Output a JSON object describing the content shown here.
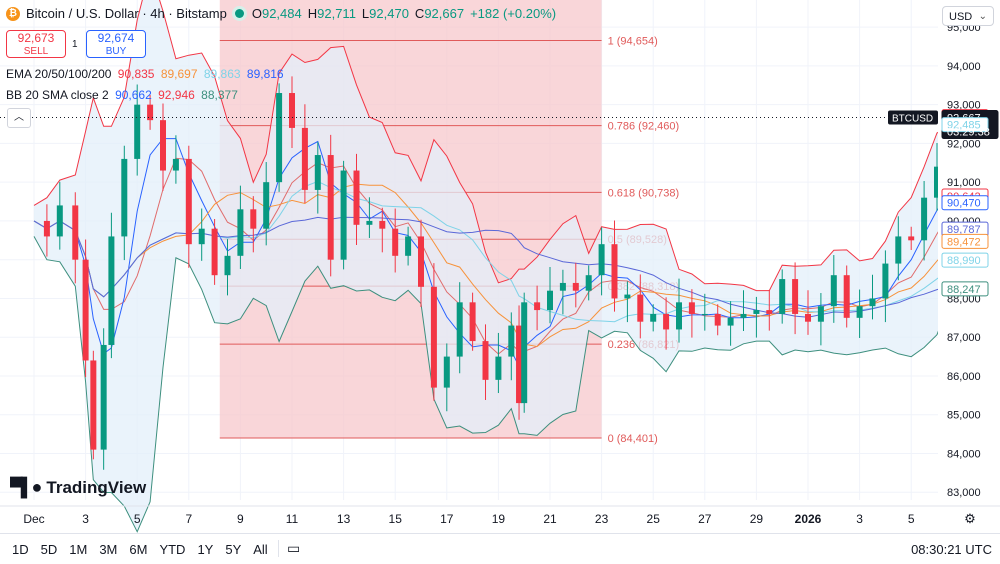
{
  "header": {
    "title": "Bitcoin / U.S. Dollar · 4h · Bitstamp",
    "o_label": "O",
    "o": "92,484",
    "h_label": "H",
    "h": "92,711",
    "l_label": "L",
    "l": "92,470",
    "c_label": "C",
    "c": "92,667",
    "change": "+182 (+0.20%)"
  },
  "trade": {
    "sell_price": "92,673",
    "sell_label": "SELL",
    "spread": "1",
    "buy_price": "92,674",
    "buy_label": "BUY"
  },
  "indicators": {
    "ema_label": "EMA 20/50/100/200",
    "ema_values": [
      "90,835",
      "89,697",
      "89,863",
      "89,816"
    ],
    "bb_label": "BB 20 SMA close 2",
    "bb_values": [
      "90,662",
      "92,946",
      "88,377"
    ]
  },
  "currency": "USD",
  "brand": "TradingView",
  "symbol_tag": "BTCUSD",
  "timer": "03:29:38",
  "time_ranges": [
    "1D",
    "5D",
    "1M",
    "3M",
    "6M",
    "YTD",
    "1Y",
    "5Y",
    "All"
  ],
  "clock": "08:30:21 UTC",
  "colors": {
    "up": "#089981",
    "down": "#f23645",
    "fib": "#e05a5a",
    "fib_zone": "#f7c5c9",
    "bb_band": "#e3effa",
    "bb_basis": "#e06c6c",
    "ema20": "#2962ff",
    "ema50": "#f7923a",
    "ema100": "#7fd3e8",
    "ema200": "#5a67d8",
    "bb_upper": "#f23645",
    "bb_lower": "#3d8f7e"
  },
  "chart_data": {
    "type": "candlestick",
    "symbol": "BTCUSD",
    "timeframe": "4h",
    "y_ticks": [
      83000,
      84000,
      85000,
      86000,
      87000,
      88000,
      89000,
      90000,
      91000,
      92000,
      93000,
      94000,
      95000
    ],
    "ylim": [
      82800,
      95700
    ],
    "x_ticks": [
      "Dec",
      "3",
      "5",
      "7",
      "9",
      "11",
      "13",
      "15",
      "17",
      "19",
      "21",
      "23",
      "25",
      "27",
      "29",
      "2026",
      "3",
      "5"
    ],
    "fib_levels": [
      {
        "label": "1 (94,654)",
        "value": 94654
      },
      {
        "label": "0.786 (92,460)",
        "value": 92460
      },
      {
        "label": "0.618 (90,738)",
        "value": 90738
      },
      {
        "label": "0.5 (89,528)",
        "value": 89528
      },
      {
        "label": "0.382 (88,318)",
        "value": 88318
      },
      {
        "label": "0.236 (86,821)",
        "value": 86821
      },
      {
        "label": "0 (84,401)",
        "value": 84401
      }
    ],
    "fib_x_range": [
      "Dec 8",
      "Dec 23"
    ],
    "right_labels": [
      {
        "text": "92,692",
        "value": 92692,
        "color": "#f23645"
      },
      {
        "text": "92,667",
        "value": 92667,
        "color": "#131722"
      },
      {
        "text": "92,485",
        "value": 92485,
        "color": "#7fd3e8"
      },
      {
        "text": "90,642",
        "value": 90642,
        "color": "#f23645"
      },
      {
        "text": "90,470",
        "value": 90470,
        "color": "#2962ff"
      },
      {
        "text": "89,787",
        "value": 89787,
        "color": "#5a67d8"
      },
      {
        "text": "89,472",
        "value": 89472,
        "color": "#f7923a"
      },
      {
        "text": "88,990",
        "value": 88990,
        "color": "#7fd3e8"
      },
      {
        "text": "88,247",
        "value": 88247,
        "color": "#3d8f7e"
      }
    ],
    "close_path": [
      [
        0.0,
        90000
      ],
      [
        0.5,
        89600
      ],
      [
        1.0,
        90400
      ],
      [
        1.6,
        89000
      ],
      [
        2.0,
        86400
      ],
      [
        2.3,
        84100
      ],
      [
        2.7,
        86800
      ],
      [
        3.0,
        89600
      ],
      [
        3.5,
        91600
      ],
      [
        4.0,
        93000
      ],
      [
        4.5,
        92600
      ],
      [
        5.0,
        91300
      ],
      [
        5.5,
        91600
      ],
      [
        6.0,
        89400
      ],
      [
        6.5,
        89800
      ],
      [
        7.0,
        88600
      ],
      [
        7.5,
        89100
      ],
      [
        8.0,
        90300
      ],
      [
        8.5,
        89800
      ],
      [
        9.0,
        91000
      ],
      [
        9.5,
        93300
      ],
      [
        10.0,
        92400
      ],
      [
        10.5,
        90800
      ],
      [
        11.0,
        91700
      ],
      [
        11.5,
        89000
      ],
      [
        12.0,
        91300
      ],
      [
        12.5,
        89900
      ],
      [
        13.0,
        90000
      ],
      [
        13.5,
        89800
      ],
      [
        14.0,
        89100
      ],
      [
        14.5,
        89600
      ],
      [
        15.0,
        88300
      ],
      [
        15.5,
        85700
      ],
      [
        16.0,
        86500
      ],
      [
        16.5,
        87900
      ],
      [
        17.0,
        86900
      ],
      [
        17.5,
        85900
      ],
      [
        18.0,
        86500
      ],
      [
        18.5,
        87300
      ],
      [
        18.8,
        85300
      ],
      [
        19.0,
        87900
      ],
      [
        19.5,
        87700
      ],
      [
        20.0,
        88200
      ],
      [
        20.5,
        88400
      ],
      [
        21.0,
        88200
      ],
      [
        21.5,
        88600
      ],
      [
        22.0,
        89400
      ],
      [
        22.5,
        88000
      ],
      [
        23.0,
        88100
      ],
      [
        23.5,
        87400
      ],
      [
        24.0,
        87600
      ],
      [
        24.5,
        87200
      ],
      [
        25.0,
        87900
      ],
      [
        25.5,
        87600
      ],
      [
        26.0,
        87600
      ],
      [
        26.5,
        87300
      ],
      [
        27.0,
        87500
      ],
      [
        27.5,
        87600
      ],
      [
        28.0,
        87700
      ],
      [
        28.5,
        87600
      ],
      [
        29.0,
        88500
      ],
      [
        29.5,
        87600
      ],
      [
        30.0,
        87400
      ],
      [
        30.5,
        87800
      ],
      [
        31.0,
        88600
      ],
      [
        31.5,
        87500
      ],
      [
        32.0,
        87800
      ],
      [
        32.5,
        88000
      ],
      [
        33.0,
        88900
      ],
      [
        33.5,
        89600
      ],
      [
        34.0,
        89500
      ],
      [
        34.5,
        90600
      ],
      [
        35.0,
        91400
      ],
      [
        35.5,
        91200
      ],
      [
        36.0,
        92667
      ]
    ]
  }
}
